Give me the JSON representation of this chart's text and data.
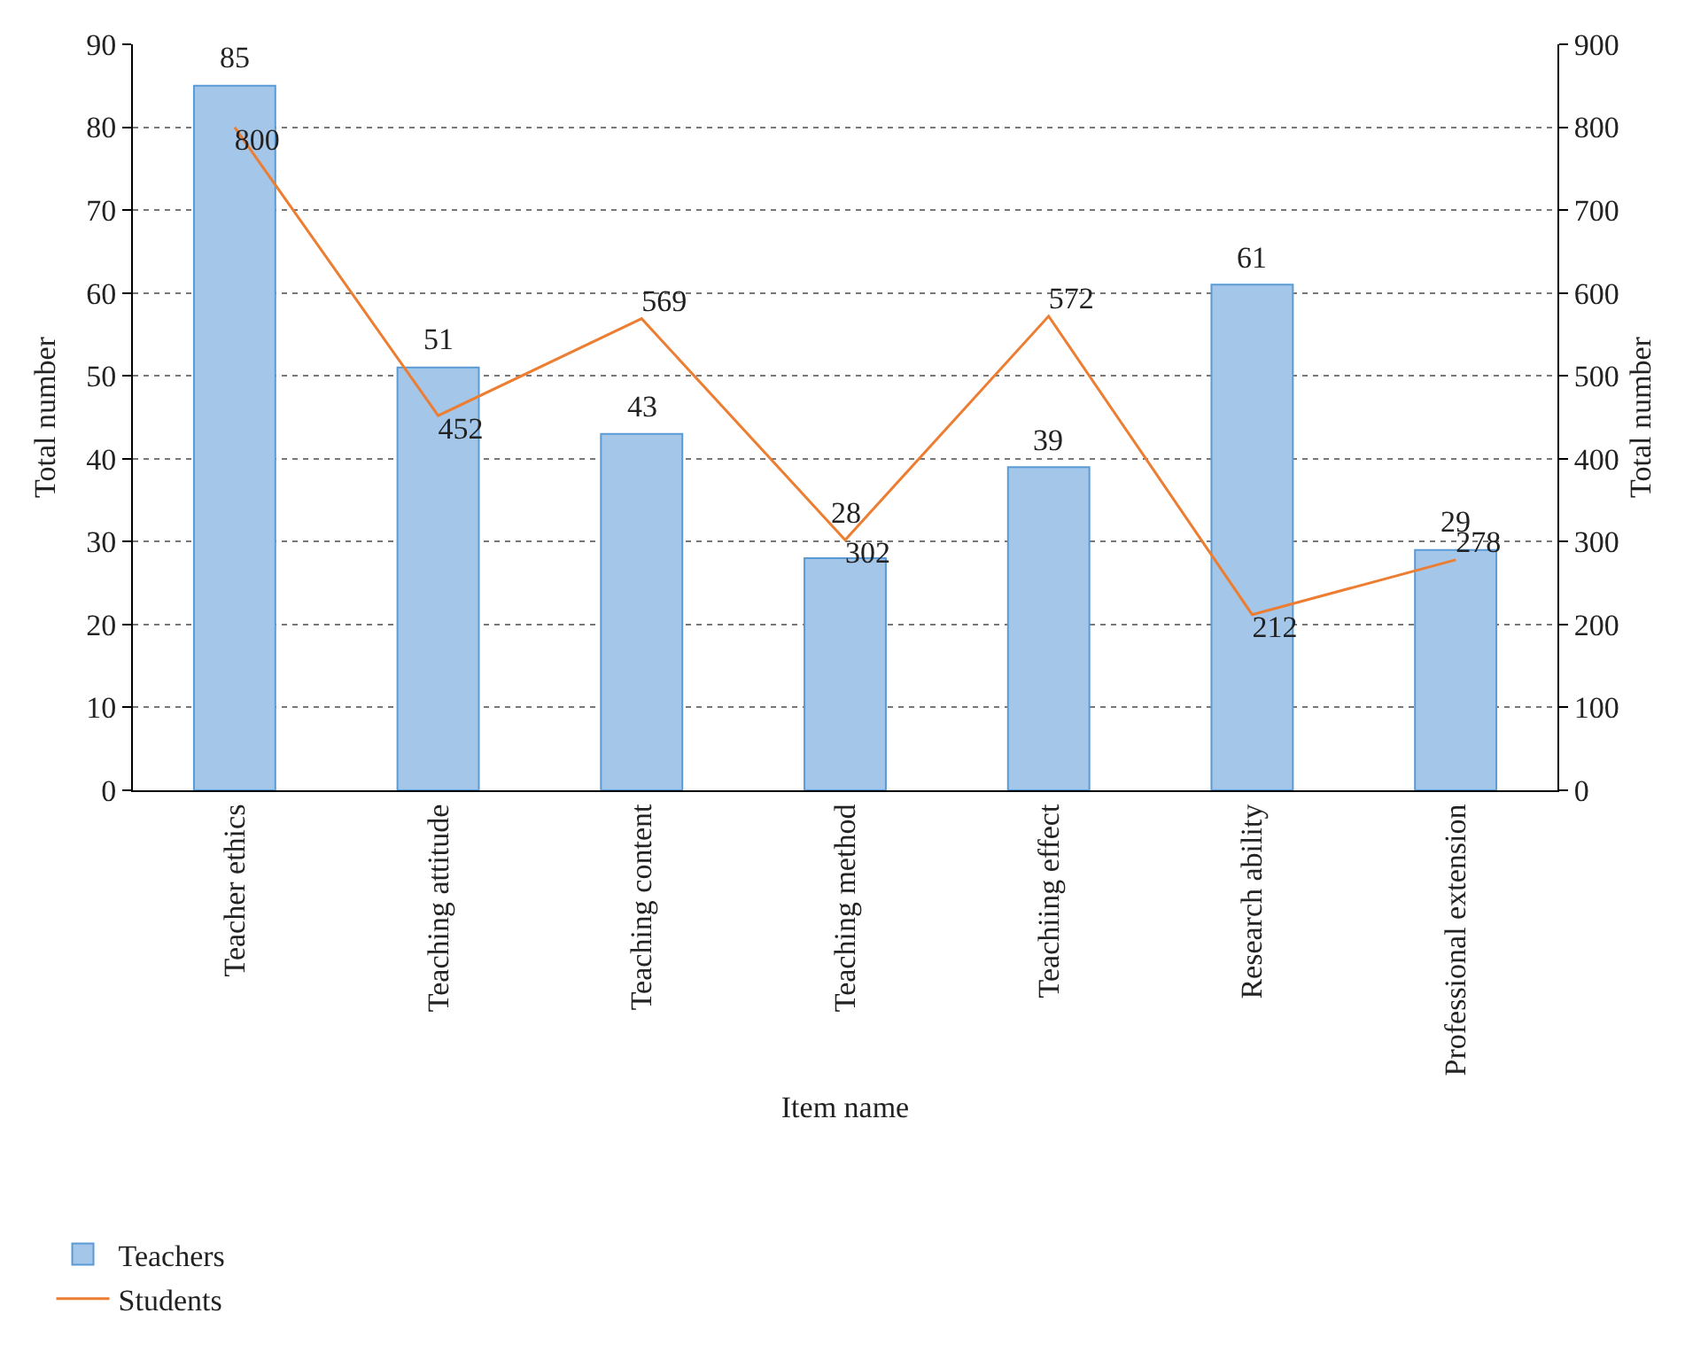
{
  "chart_data": {
    "type": "bar",
    "xlabel": "Item name",
    "ylabel": "Total number",
    "y2label": "Total number",
    "categories": [
      "Teacher ethics",
      "Teaching attitude",
      "Teaching content",
      "Teaching method",
      "Teachiing effect",
      "Research ability",
      "Professional extension"
    ],
    "series": [
      {
        "name": "Teachers",
        "color": "#a3c6e9",
        "values": [
          85,
          51,
          43,
          28,
          39,
          61,
          29
        ]
      },
      {
        "name": "Students",
        "type": "line",
        "axis": "y2",
        "color": "#ed7d31",
        "line_style": "solid",
        "values": [
          800,
          452,
          569,
          302,
          572,
          212,
          278
        ]
      }
    ],
    "ylim": [
      0,
      90
    ],
    "yticks": [
      0,
      10,
      20,
      30,
      40,
      50,
      60,
      70,
      80,
      90
    ],
    "y2lim": [
      0,
      900
    ],
    "y2ticks": [
      0,
      100,
      200,
      300,
      400,
      500,
      600,
      700,
      800,
      900
    ],
    "grid": "y",
    "legend": "bottom left",
    "marker": "none",
    "data_labels": true
  }
}
